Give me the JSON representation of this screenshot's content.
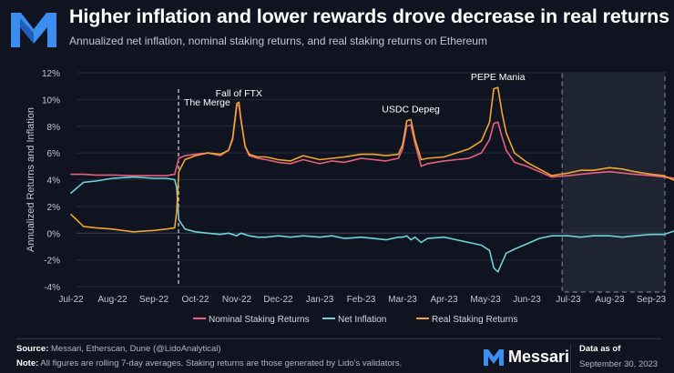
{
  "header": {
    "title": "Higher inflation and lower rewards drove decrease in real returns",
    "subtitle": "Annualized net inflation, nominal staking returns, and real staking returns on Ethereum"
  },
  "footer": {
    "source_label": "Source:",
    "source_text": "Messari, Etherscan, Dune (@LidoAnalytical)",
    "note_label": "Note:",
    "note_text": "All figures are rolling 7-day averages. Staking returns are those generated by Lido's validators.",
    "brand": "Messari",
    "data_as_of_label": "Data as of",
    "data_as_of_date": "September 30, 2023"
  },
  "colors": {
    "nominal": "#e8607e",
    "inflation": "#6fd3da",
    "real": "#f2a531",
    "brand_blue": "#3b8ef0"
  },
  "chart_data": {
    "type": "line",
    "title": "Higher inflation and lower rewards drove decrease in real returns",
    "ylabel": "Annualized Returns and Inflation",
    "xlabel": "",
    "ylim": [
      -4,
      12
    ],
    "yticks": [
      -4,
      -2,
      0,
      2,
      4,
      6,
      8,
      10,
      12
    ],
    "ytick_labels": [
      "-4%",
      "-2%",
      "0%",
      "2%",
      "4%",
      "6%",
      "8%",
      "10%",
      "12%"
    ],
    "xlim": [
      0,
      15
    ],
    "xticks": [
      0,
      1,
      2,
      3,
      4,
      5,
      6,
      7,
      8,
      9,
      10,
      11,
      12,
      13,
      14
    ],
    "xtick_labels": [
      "Jul-22",
      "Aug-22",
      "Sep-22",
      "Oct-22",
      "Nov-22",
      "Dec-22",
      "Jan-23",
      "Feb-23",
      "Mar-23",
      "Apr-23",
      "May-23",
      "Jun-23",
      "Jul-23",
      "Aug-23",
      "Sep-23"
    ],
    "legend_position": "bottom",
    "x": [
      0.0,
      0.3,
      0.6,
      1.0,
      1.5,
      2.0,
      2.3,
      2.5,
      2.55,
      2.6,
      2.75,
      3.0,
      3.3,
      3.6,
      3.8,
      3.9,
      4.0,
      4.05,
      4.1,
      4.2,
      4.3,
      4.5,
      4.7,
      5.0,
      5.3,
      5.6,
      6.0,
      6.3,
      6.6,
      7.0,
      7.3,
      7.6,
      7.9,
      8.0,
      8.1,
      8.2,
      8.3,
      8.45,
      8.6,
      9.0,
      9.3,
      9.6,
      9.9,
      10.1,
      10.2,
      10.3,
      10.4,
      10.5,
      10.7,
      11.0,
      11.3,
      11.6,
      12.0,
      12.3,
      12.6,
      13.0,
      13.3,
      13.6,
      14.0,
      14.3,
      14.6,
      14.9
    ],
    "series": [
      {
        "name": "Nominal Staking Returns",
        "color": "#e8607e",
        "values": [
          4.4,
          4.4,
          4.35,
          4.35,
          4.3,
          4.3,
          4.3,
          4.4,
          5.0,
          5.6,
          5.8,
          5.9,
          6.0,
          5.8,
          6.2,
          7.0,
          9.5,
          9.6,
          8.5,
          6.5,
          5.8,
          5.6,
          5.5,
          5.3,
          5.2,
          5.5,
          5.2,
          5.4,
          5.3,
          5.6,
          5.5,
          5.4,
          5.6,
          6.3,
          8.0,
          8.1,
          6.7,
          5.0,
          5.2,
          5.4,
          5.5,
          5.6,
          6.0,
          7.0,
          8.2,
          8.3,
          7.2,
          6.2,
          5.3,
          5.0,
          4.6,
          4.2,
          4.3,
          4.4,
          4.5,
          4.6,
          4.5,
          4.4,
          4.3,
          4.2,
          4.1,
          4.0
        ]
      },
      {
        "name": "Net Inflation",
        "color": "#6fd3da",
        "values": [
          3.0,
          3.8,
          3.9,
          4.1,
          4.2,
          4.1,
          4.1,
          4.0,
          3.4,
          1.0,
          0.3,
          0.1,
          0.0,
          -0.1,
          0.0,
          -0.1,
          -0.2,
          -0.1,
          0.0,
          -0.1,
          -0.2,
          -0.3,
          -0.3,
          -0.2,
          -0.3,
          -0.2,
          -0.3,
          -0.2,
          -0.4,
          -0.3,
          -0.4,
          -0.5,
          -0.3,
          -0.3,
          -0.2,
          -0.5,
          -0.3,
          -0.7,
          -0.4,
          -0.3,
          -0.5,
          -0.7,
          -0.9,
          -1.3,
          -2.6,
          -2.9,
          -2.2,
          -1.5,
          -1.2,
          -0.8,
          -0.4,
          -0.2,
          -0.2,
          -0.3,
          -0.2,
          -0.2,
          -0.3,
          -0.2,
          -0.1,
          -0.1,
          0.2,
          0.4
        ]
      },
      {
        "name": "Real Staking Returns",
        "color": "#f2a531",
        "values": [
          1.4,
          0.5,
          0.4,
          0.3,
          0.1,
          0.2,
          0.3,
          0.4,
          1.6,
          4.6,
          5.5,
          5.8,
          6.0,
          5.9,
          6.2,
          7.1,
          9.7,
          9.8,
          8.5,
          6.5,
          5.9,
          5.7,
          5.7,
          5.5,
          5.4,
          5.8,
          5.5,
          5.6,
          5.7,
          5.9,
          5.9,
          5.8,
          5.9,
          6.6,
          8.4,
          8.5,
          7.0,
          5.5,
          5.6,
          5.7,
          6.0,
          6.3,
          6.9,
          8.3,
          10.8,
          10.9,
          9.0,
          7.5,
          6.0,
          5.3,
          4.8,
          4.3,
          4.5,
          4.7,
          4.7,
          4.9,
          4.8,
          4.6,
          4.4,
          4.3,
          3.9,
          3.6
        ]
      }
    ],
    "annotations": [
      {
        "text": "The Merge",
        "x": 2.55,
        "type": "vline"
      },
      {
        "text": "Fall of FTX",
        "x": 4.05,
        "y": 9.7
      },
      {
        "text": "USDC Depeg",
        "x": 8.2,
        "y": 8.5
      },
      {
        "text": "PEPE Mania",
        "x": 10.3,
        "y": 10.9
      }
    ],
    "shaded_region": {
      "x_start": 11.85,
      "x_end": 15.0
    }
  }
}
